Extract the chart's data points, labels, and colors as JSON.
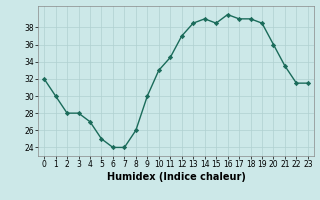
{
  "x": [
    0,
    1,
    2,
    3,
    4,
    5,
    6,
    7,
    8,
    9,
    10,
    11,
    12,
    13,
    14,
    15,
    16,
    17,
    18,
    19,
    20,
    21,
    22,
    23
  ],
  "y": [
    32,
    30,
    28,
    28,
    27,
    25,
    24,
    24,
    26,
    30,
    33,
    34.5,
    37,
    38.5,
    39,
    38.5,
    39.5,
    39,
    39,
    38.5,
    36,
    33.5,
    31.5,
    31.5
  ],
  "xlabel": "Humidex (Indice chaleur)",
  "xlim": [
    -0.5,
    23.5
  ],
  "ylim": [
    23,
    40.5
  ],
  "yticks": [
    24,
    26,
    28,
    30,
    32,
    34,
    36,
    38
  ],
  "xticks": [
    0,
    1,
    2,
    3,
    4,
    5,
    6,
    7,
    8,
    9,
    10,
    11,
    12,
    13,
    14,
    15,
    16,
    17,
    18,
    19,
    20,
    21,
    22,
    23
  ],
  "line_color": "#1a6b5a",
  "marker_color": "#1a6b5a",
  "bg_color": "#cce8e8",
  "grid_color": "#b0d0d0",
  "marker": "D",
  "marker_size": 2.2,
  "line_width": 1.0,
  "tick_fontsize": 5.5,
  "xlabel_fontsize": 7.0
}
